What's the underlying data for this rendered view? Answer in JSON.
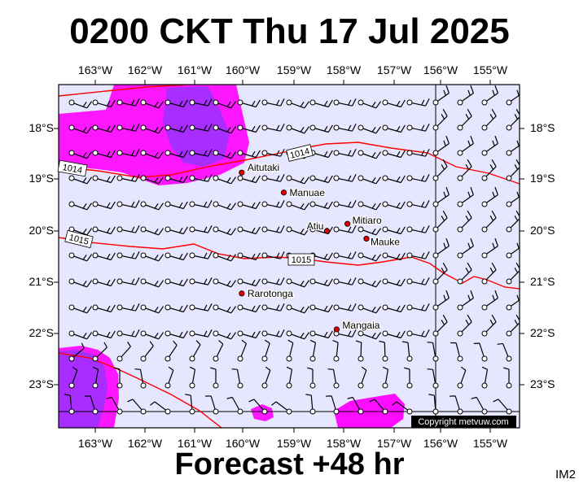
{
  "title": "0200 CKT Thu 17 Jul 2025",
  "footer": "Forecast +48 hr",
  "image_code": "IM2",
  "copyright": "Copyright metvuw.com",
  "map": {
    "background_color": "#e6e6ff",
    "precip_color_light": "#ff00ff",
    "precip_color_heavy": "#9933ff",
    "isobar_color": "#ff0000",
    "lon_ticks": [
      "163°W",
      "162°W",
      "161°W",
      "160°W",
      "159°W",
      "158°W",
      "157°W",
      "156°W",
      "155°W"
    ],
    "lat_ticks": [
      "18°S",
      "19°S",
      "20°S",
      "21°S",
      "22°S",
      "23°S"
    ],
    "isobars": [
      {
        "label": "1014"
      },
      {
        "label": "1014"
      },
      {
        "label": "1015"
      },
      {
        "label": "1015"
      }
    ],
    "places": [
      {
        "name": "Aitutaki",
        "lon": -159.78,
        "lat": -18.86
      },
      {
        "name": "Manuae",
        "lon": -158.96,
        "lat": -19.25
      },
      {
        "name": "Atiu",
        "lon": -158.12,
        "lat": -20.0
      },
      {
        "name": "Mitiaro",
        "lon": -157.72,
        "lat": -19.86
      },
      {
        "name": "Mauke",
        "lon": -157.35,
        "lat": -20.15
      },
      {
        "name": "Rarotonga",
        "lon": -159.78,
        "lat": -21.22
      },
      {
        "name": "Mangaia",
        "lon": -157.93,
        "lat": -21.92
      }
    ]
  }
}
